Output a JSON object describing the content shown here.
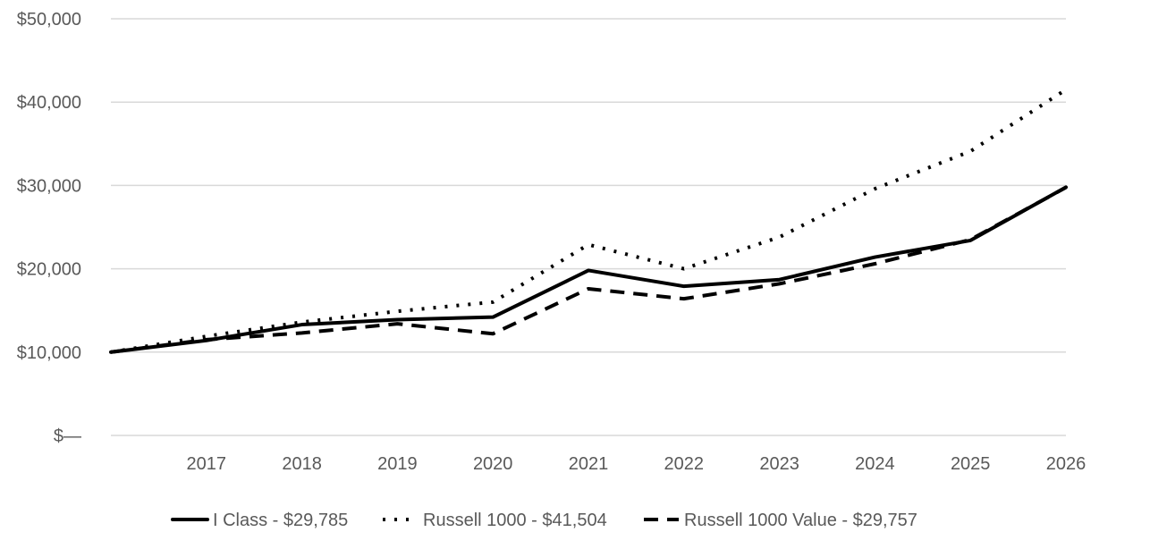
{
  "chart_data": {
    "type": "line",
    "title": "",
    "xlabel": "",
    "ylabel": "",
    "x": [
      2016,
      2017,
      2018,
      2019,
      2020,
      2021,
      2022,
      2023,
      2024,
      2025,
      2026
    ],
    "x_tick_labels": [
      "2017",
      "2018",
      "2019",
      "2020",
      "2021",
      "2022",
      "2023",
      "2024",
      "2025",
      "2026"
    ],
    "y_tick_labels": [
      "$—",
      "$10,000",
      "$20,000",
      "$30,000",
      "$40,000",
      "$50,000"
    ],
    "ylim": [
      0,
      50000
    ],
    "grid": true,
    "legend_position": "bottom",
    "series": [
      {
        "name": "I Class",
        "legend_label": "I Class - $29,785",
        "style": "solid",
        "values": [
          10000,
          11400,
          13300,
          13900,
          14200,
          19800,
          17900,
          18700,
          21400,
          23400,
          29785
        ]
      },
      {
        "name": "Russell 1000",
        "legend_label": "Russell 1000 - $41,504",
        "style": "dotted",
        "values": [
          10000,
          11900,
          13600,
          14900,
          16000,
          22900,
          20000,
          23800,
          29600,
          34100,
          41504
        ]
      },
      {
        "name": "Russell 1000 Value",
        "legend_label": "Russell 1000 Value - $29,757",
        "style": "dashed",
        "values": [
          10000,
          11500,
          12300,
          13400,
          12200,
          17600,
          16400,
          18200,
          20600,
          23500,
          29757
        ]
      }
    ],
    "colors": {
      "line": "#000000",
      "grid": "#d9d9d9",
      "text": "#595959"
    }
  }
}
